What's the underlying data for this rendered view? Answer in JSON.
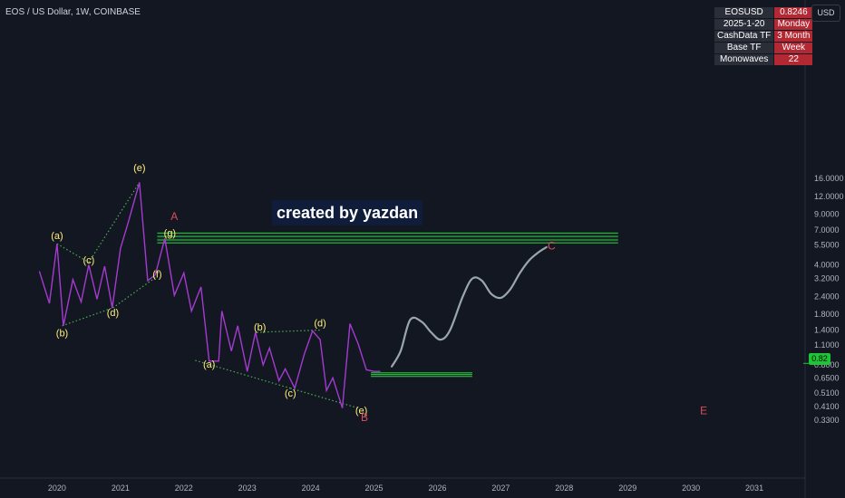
{
  "header": {
    "title": "EOS / US Dollar, 1W, COINBASE",
    "unit_button": "USD"
  },
  "info_table": [
    {
      "key": "EOSUSD",
      "value": "0.8246"
    },
    {
      "key": "2025-1-20",
      "value": "Monday"
    },
    {
      "key": "CashData TF",
      "value": "3 Month"
    },
    {
      "key": "Base TF",
      "value": "Week"
    },
    {
      "key": "Monowaves",
      "value": "22"
    }
  ],
  "watermark": "created by yazdan",
  "current_price_label": "0.82",
  "colors": {
    "background": "#131722",
    "price_line": "#a43bd0",
    "projection": "#9aa6ad",
    "wave_label": "#fff07a",
    "red_label": "#e04c5a",
    "zone": "#2ecc40",
    "dotted_line": "#4caf50"
  },
  "chart_data": {
    "type": "line",
    "title": "EOS / US Dollar, 1W, COINBASE",
    "y_scale": "log",
    "ylim": [
      0.3,
      26
    ],
    "xlim": [
      2019.1,
      2031.8
    ],
    "x_ticks": [
      "2020",
      "2021",
      "2022",
      "2023",
      "2024",
      "2025",
      "2026",
      "2027",
      "2028",
      "2029",
      "2030",
      "2031"
    ],
    "y_ticks": [
      "16.0000",
      "12.0000",
      "9.0000",
      "7.0000",
      "5.5000",
      "4.0000",
      "3.2000",
      "2.4000",
      "1.8000",
      "1.4000",
      "1.1000",
      "0.8000",
      "0.6500",
      "0.5100",
      "0.4100",
      "0.3300"
    ],
    "price_series": {
      "x": [
        2019.72,
        2019.88,
        2020.0,
        2020.1,
        2020.25,
        2020.38,
        2020.5,
        2020.63,
        2020.75,
        2020.87,
        2021.0,
        2021.12,
        2021.3,
        2021.43,
        2021.55,
        2021.7,
        2021.85,
        2022.0,
        2022.12,
        2022.27,
        2022.4,
        2022.55,
        2022.6,
        2022.75,
        2022.85,
        2023.0,
        2023.13,
        2023.25,
        2023.35,
        2023.5,
        2023.6,
        2023.75,
        2023.9,
        2024.03,
        2024.15,
        2024.25,
        2024.35,
        2024.5,
        2024.62,
        2024.75,
        2024.88,
        2025.0,
        2025.1
      ],
      "y": [
        3.6,
        2.15,
        5.6,
        1.5,
        3.15,
        2.2,
        4.0,
        2.3,
        3.9,
        2.0,
        5.2,
        7.8,
        15.0,
        3.1,
        3.4,
        6.1,
        2.45,
        3.5,
        1.9,
        2.8,
        0.85,
        0.85,
        1.9,
        1.0,
        1.5,
        0.72,
        1.35,
        0.8,
        1.05,
        0.62,
        0.75,
        0.55,
        0.95,
        1.38,
        1.2,
        0.53,
        0.65,
        0.4,
        1.55,
        1.12,
        0.74,
        0.72,
        0.72
      ]
    },
    "projection_series": {
      "x": [
        2025.28,
        2025.42,
        2025.57,
        2025.75,
        2025.9,
        2026.05,
        2026.2,
        2026.4,
        2026.55,
        2026.7,
        2026.85,
        2027.0,
        2027.15,
        2027.3,
        2027.45,
        2027.6,
        2027.72
      ],
      "y": [
        0.78,
        1.0,
        1.65,
        1.6,
        1.35,
        1.2,
        1.4,
        2.4,
        3.2,
        3.1,
        2.5,
        2.35,
        2.7,
        3.5,
        4.3,
        4.9,
        5.3
      ]
    },
    "wave_labels": [
      {
        "text": "(a)",
        "x": 2020.0,
        "y": 6.3
      },
      {
        "text": "(b)",
        "x": 2020.08,
        "y": 1.32
      },
      {
        "text": "(c)",
        "x": 2020.5,
        "y": 4.25
      },
      {
        "text": "(d)",
        "x": 2020.88,
        "y": 1.83
      },
      {
        "text": "(e)",
        "x": 2021.3,
        "y": 18.8
      },
      {
        "text": "(f)",
        "x": 2021.58,
        "y": 3.4
      },
      {
        "text": "(g)",
        "x": 2021.78,
        "y": 6.6
      },
      {
        "text": "(a)",
        "x": 2022.4,
        "y": 0.8
      },
      {
        "text": "(b)",
        "x": 2023.2,
        "y": 1.45
      },
      {
        "text": "(c)",
        "x": 2023.68,
        "y": 0.5
      },
      {
        "text": "(d)",
        "x": 2024.15,
        "y": 1.55
      },
      {
        "text": "(e)",
        "x": 2024.8,
        "y": 0.38
      }
    ],
    "red_labels": [
      {
        "text": "A",
        "x": 2021.85,
        "y": 8.6
      },
      {
        "text": "B",
        "x": 2024.85,
        "y": 0.34
      },
      {
        "text": "C",
        "x": 2027.8,
        "y": 5.35
      },
      {
        "text": "E",
        "x": 2030.2,
        "y": 0.38
      }
    ],
    "zones": [
      {
        "x1": 2021.58,
        "x2": 2028.85,
        "y_lines": [
          6.65,
          6.3,
          5.95,
          5.68
        ]
      },
      {
        "x1": 2024.95,
        "x2": 2026.55,
        "y_lines": [
          0.705,
          0.685,
          0.665
        ]
      }
    ],
    "trendlines": [
      {
        "x1": 2020.0,
        "y1": 5.6,
        "x2": 2020.5,
        "y2": 4.15
      },
      {
        "x1": 2020.5,
        "y1": 4.15,
        "x2": 2021.3,
        "y2": 15.0
      },
      {
        "x1": 2020.08,
        "y1": 1.5,
        "x2": 2020.88,
        "y2": 2.0
      },
      {
        "x1": 2020.88,
        "y1": 2.0,
        "x2": 2021.55,
        "y2": 3.25
      },
      {
        "x1": 2022.18,
        "y1": 0.86,
        "x2": 2023.68,
        "y2": 0.55
      },
      {
        "x1": 2023.68,
        "y1": 0.55,
        "x2": 2024.75,
        "y2": 0.4
      },
      {
        "x1": 2023.15,
        "y1": 1.35,
        "x2": 2024.15,
        "y2": 1.4
      }
    ]
  }
}
